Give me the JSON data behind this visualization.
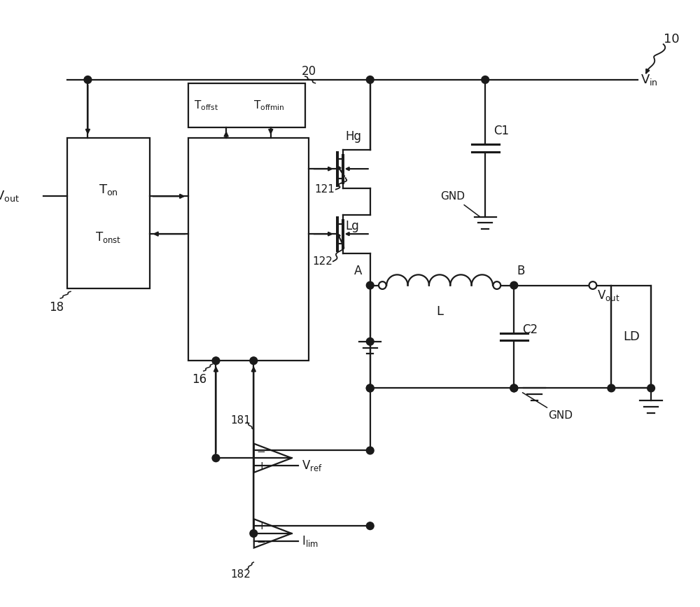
{
  "bg_color": "#ffffff",
  "lc": "#1a1a1a",
  "lw": 1.6,
  "figsize": [
    10.0,
    8.67
  ],
  "xlim": [
    0,
    10
  ],
  "ylim": [
    0,
    8.67
  ]
}
